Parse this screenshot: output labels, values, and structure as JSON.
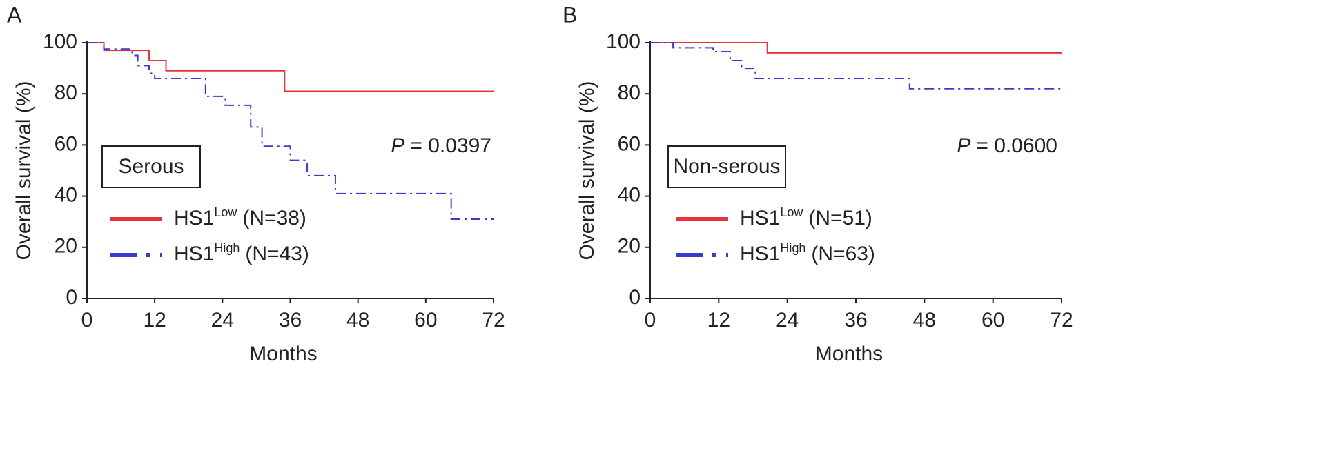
{
  "chart_data": [
    {
      "type": "line",
      "step": true,
      "panel": "A",
      "xlabel": "Months",
      "ylabel": "Overall survival (%)",
      "box_label": "Serous",
      "annotation": {
        "symbol": "P",
        "text": "= 0.0397"
      },
      "xlim": [
        0,
        72
      ],
      "xticks": [
        0,
        12,
        24,
        36,
        48,
        60,
        72
      ],
      "ylim": [
        0,
        100
      ],
      "yticks": [
        0,
        20,
        40,
        60,
        80,
        100
      ],
      "series": [
        {
          "name": "HS1",
          "name_sup": "Low",
          "n_label": "(N=38)",
          "color": "#e8333c",
          "dash": "solid",
          "x": [
            0,
            3,
            3,
            11,
            11,
            14,
            14,
            35,
            35,
            72
          ],
          "values": [
            100,
            100,
            97,
            97,
            93,
            93,
            89,
            89,
            81,
            81
          ]
        },
        {
          "name": "HS1",
          "name_sup": "High",
          "n_label": "(N=43)",
          "color": "#3a3acc",
          "dash": "dashdot",
          "x": [
            0,
            3,
            3,
            8,
            8,
            9,
            9,
            11,
            11,
            12,
            12,
            21,
            21,
            24.5,
            24.5,
            29,
            29,
            31,
            31,
            36,
            36,
            39,
            39,
            44,
            44,
            64.5,
            64.5,
            72
          ],
          "values": [
            100,
            100,
            97.5,
            97.5,
            95,
            95,
            91,
            91,
            88,
            88,
            86,
            86,
            79,
            79,
            75.5,
            75.5,
            67,
            67,
            59.5,
            59.5,
            54,
            54,
            48,
            48,
            41,
            41,
            31,
            31
          ]
        }
      ]
    },
    {
      "type": "line",
      "step": true,
      "panel": "B",
      "xlabel": "Months",
      "ylabel": "Overall survival (%)",
      "box_label": "Non-serous",
      "annotation": {
        "symbol": "P",
        "text": "= 0.0600"
      },
      "xlim": [
        0,
        72
      ],
      "xticks": [
        0,
        12,
        24,
        36,
        48,
        60,
        72
      ],
      "ylim": [
        0,
        100
      ],
      "yticks": [
        0,
        20,
        40,
        60,
        80,
        100
      ],
      "series": [
        {
          "name": "HS1",
          "name_sup": "Low",
          "n_label": "(N=51)",
          "color": "#e8333c",
          "dash": "solid",
          "x": [
            0,
            20.5,
            20.5,
            72
          ],
          "values": [
            100,
            100,
            96,
            96
          ]
        },
        {
          "name": "HS1",
          "name_sup": "High",
          "n_label": "(N=63)",
          "color": "#3a3acc",
          "dash": "dashdot",
          "x": [
            0,
            4,
            4,
            11,
            11,
            14,
            14,
            16,
            16,
            18.4,
            18.4,
            45.4,
            45.4,
            72
          ],
          "values": [
            100,
            100,
            98,
            98,
            96.5,
            96.5,
            93,
            93,
            90,
            90,
            86,
            86,
            82,
            82
          ]
        }
      ]
    }
  ]
}
